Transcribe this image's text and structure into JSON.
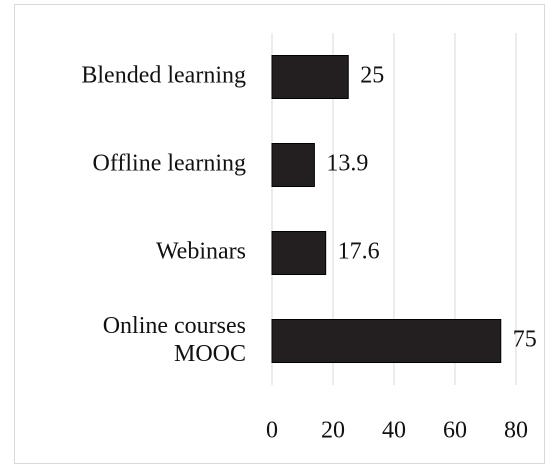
{
  "chart_data": {
    "type": "bar",
    "orientation": "horizontal",
    "categories": [
      "Blended learning",
      "Offline learning",
      "Webinars",
      "Online courses\nMOOC"
    ],
    "values": [
      25,
      13.9,
      17.6,
      75
    ],
    "color": "#231f20",
    "xlim": [
      0,
      80
    ],
    "xticks": [
      0,
      20,
      40,
      60,
      80
    ],
    "grid": true
  }
}
